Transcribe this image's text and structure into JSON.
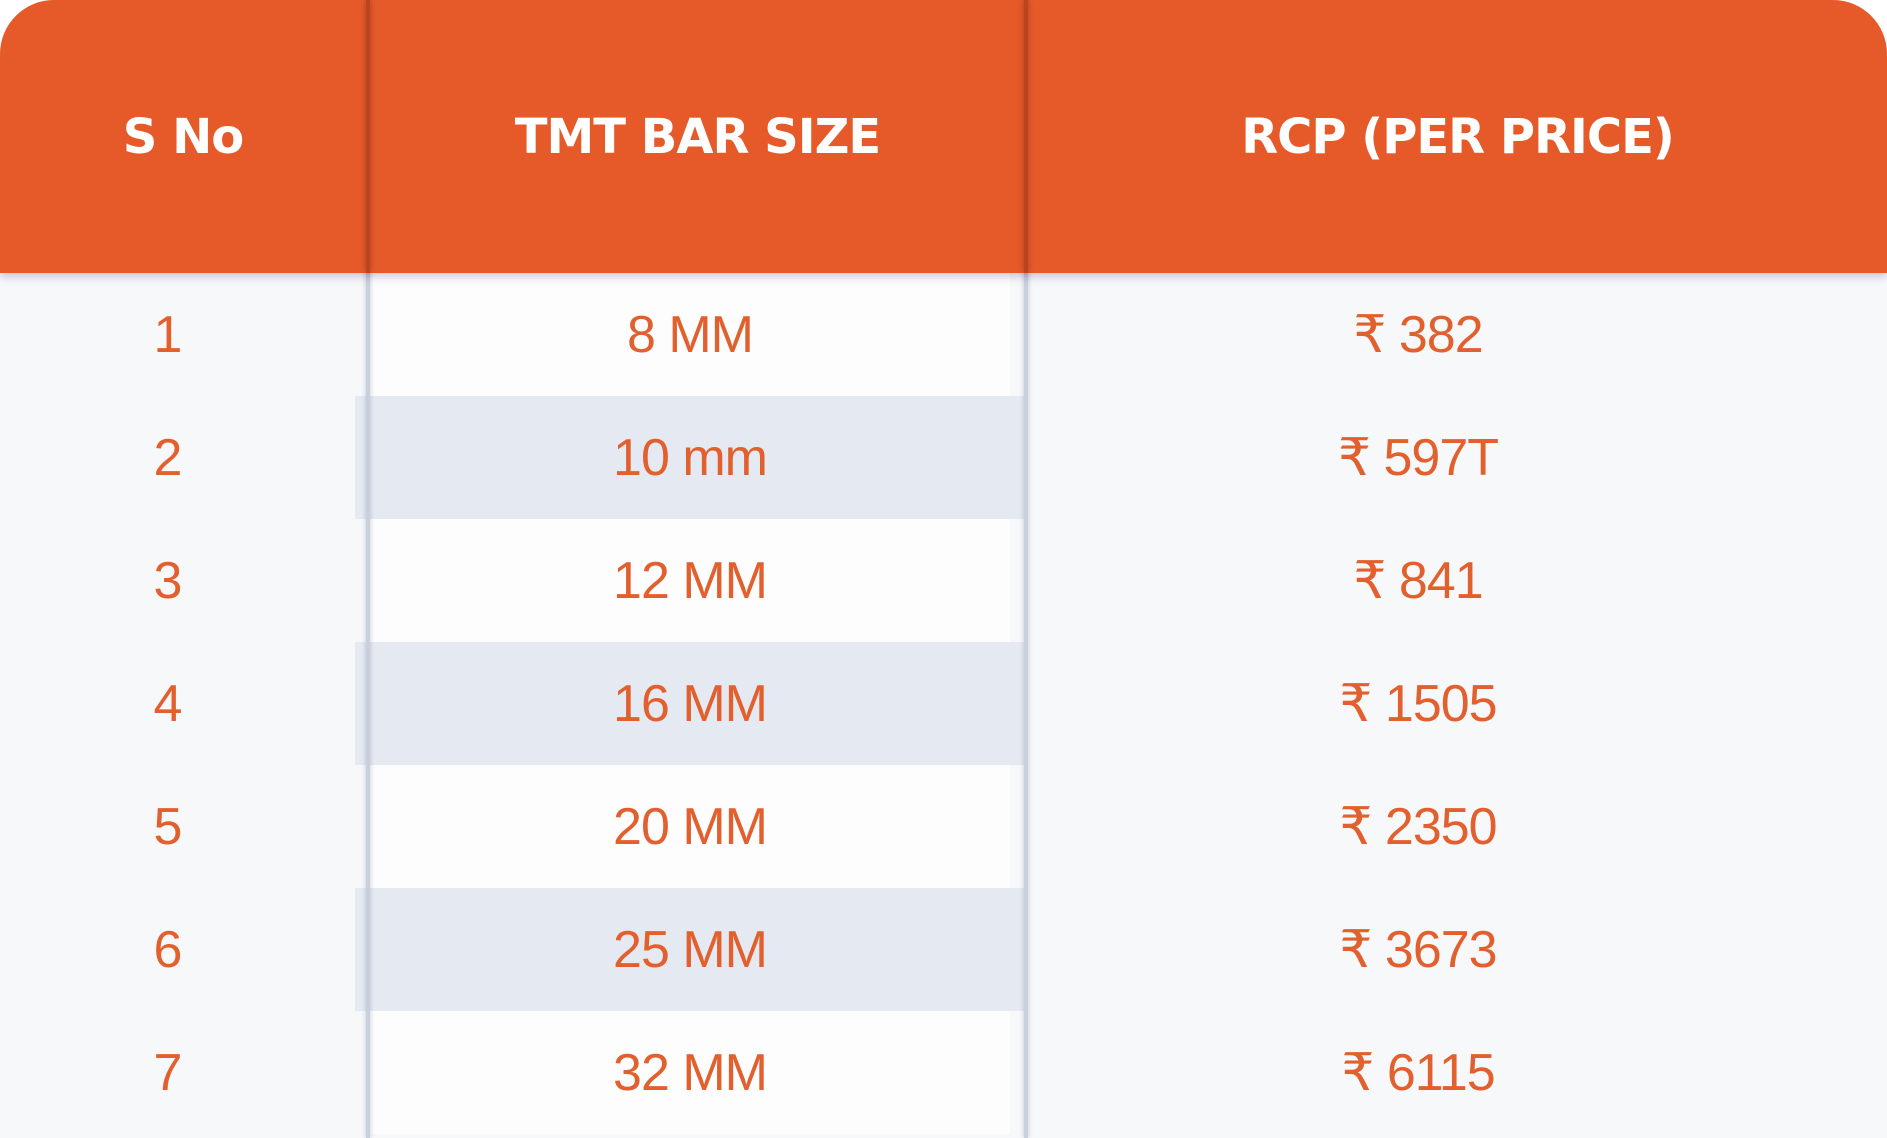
{
  "table": {
    "headers": {
      "sno": "S No",
      "size": "TMT BAR SIZE",
      "price": "RCP (PER PRICE)"
    },
    "rows": [
      {
        "sno": "1",
        "size": "8 MM",
        "price": "₹ 382"
      },
      {
        "sno": "2",
        "size": "10 mm",
        "price": "₹ 597T"
      },
      {
        "sno": "3",
        "size": "12 MM",
        "price": "₹ 841"
      },
      {
        "sno": "4",
        "size": "16 MM",
        "price": "₹ 1505"
      },
      {
        "sno": "5",
        "size": "20 MM",
        "price": "₹ 2350"
      },
      {
        "sno": "6",
        "size": "25 MM",
        "price": "₹ 3673"
      },
      {
        "sno": "7",
        "size": "32 MM",
        "price": "₹ 6115"
      }
    ]
  },
  "colors": {
    "header_bg": "#e65a2a",
    "text_accent": "#e2602e",
    "stripe": "#e5e9f1",
    "body_bg": "#f6f8fa"
  }
}
